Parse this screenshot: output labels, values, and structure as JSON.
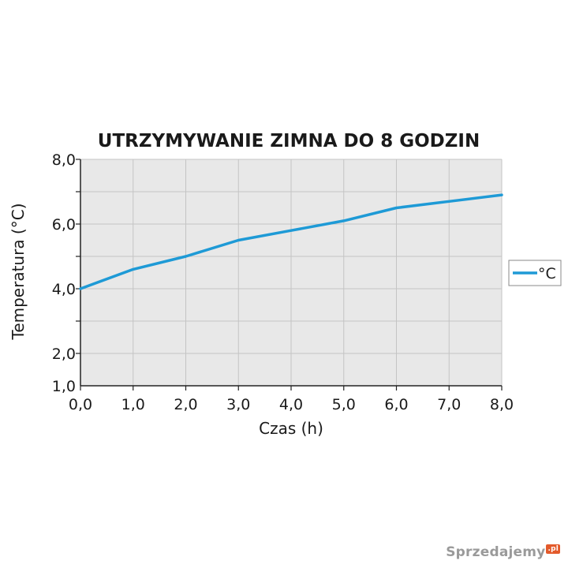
{
  "chart_data": {
    "type": "line",
    "title": "UTRZYMYWANIE ZIMNA DO 8 GODZIN",
    "xlabel": "Czas (h)",
    "ylabel": "Temperatura (°C)",
    "x": [
      0,
      1,
      2,
      3,
      4,
      5,
      6,
      7,
      8
    ],
    "x_tick_labels": [
      "0,0",
      "1,0",
      "2,0",
      "3,0",
      "4,0",
      "5,0",
      "6,0",
      "7,0",
      "8,0"
    ],
    "y_tick_values": [
      1,
      2,
      4,
      6,
      8
    ],
    "y_tick_labels": [
      "1,0",
      "2,0",
      "4,0",
      "6,0",
      "8,0"
    ],
    "xlim": [
      0,
      8
    ],
    "ylim": [
      1,
      8
    ],
    "series": [
      {
        "name": "°C",
        "values": [
          4.0,
          4.6,
          5.0,
          5.5,
          5.8,
          6.1,
          6.5,
          6.7,
          6.9
        ]
      }
    ],
    "grid": true,
    "legend_position": "right",
    "colors": {
      "line": "#1e9ad6",
      "plot_background": "#e8e8e8",
      "grid": "#c4c4c4"
    }
  },
  "watermark": {
    "text": "Sprzedajemy",
    "badge": ".pl"
  }
}
